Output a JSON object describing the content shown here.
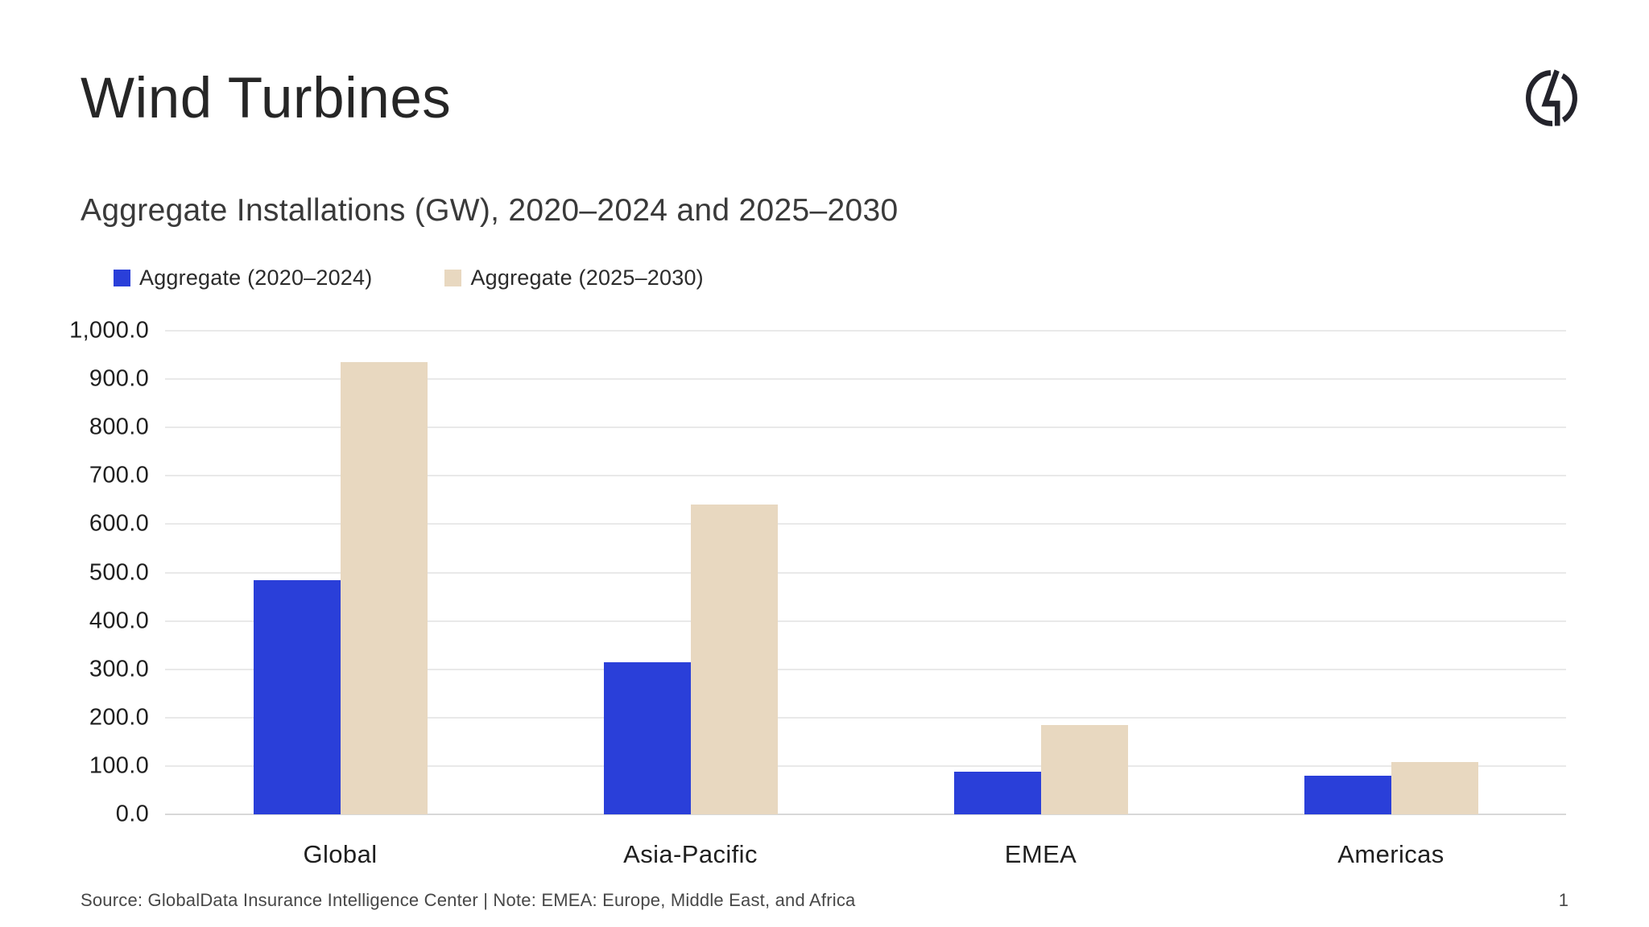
{
  "page": {
    "title": "Wind Turbines",
    "subtitle": "Aggregate Installations (GW), 2020–2024 and 2025–2030",
    "source_note": "Source: GlobalData Insurance Intelligence Center | Note: EMEA: Europe, Middle East, and Africa",
    "page_number": "1",
    "logo": "globaldata-monogram"
  },
  "colors": {
    "series1": "#2a3fd9",
    "series2": "#e8d8c0",
    "gridline": "#e9e9e9",
    "axis_baseline": "#d8d8d8",
    "title_text": "#262626",
    "subtitle_text": "#3a3a3a",
    "tick_text": "#1f1f1f",
    "muted_text": "#474747",
    "background": "#ffffff",
    "logo_ink": "#23232b"
  },
  "chart_data": {
    "type": "bar",
    "title": "Aggregate Installations (GW), 2020–2024 and 2025–2030",
    "categories": [
      "Global",
      "Asia-Pacific",
      "EMEA",
      "Americas"
    ],
    "series": [
      {
        "name": "Aggregate (2020–2024)",
        "color_key": "series1",
        "values": [
          485,
          315,
          88,
          80
        ]
      },
      {
        "name": "Aggregate (2025–2030)",
        "color_key": "series2",
        "values": [
          935,
          640,
          185,
          108
        ]
      }
    ],
    "xlabel": "",
    "ylabel": "",
    "ylim": [
      0,
      1000
    ],
    "ytick_step": 100,
    "ytick_labels_top_to_bottom": [
      "1,000.0",
      "900.0",
      "800.0",
      "700.0",
      "600.0",
      "500.0",
      "400.0",
      "300.0",
      "200.0",
      "100.0",
      "0.0"
    ],
    "grid": true,
    "legend_position": "top-left"
  }
}
